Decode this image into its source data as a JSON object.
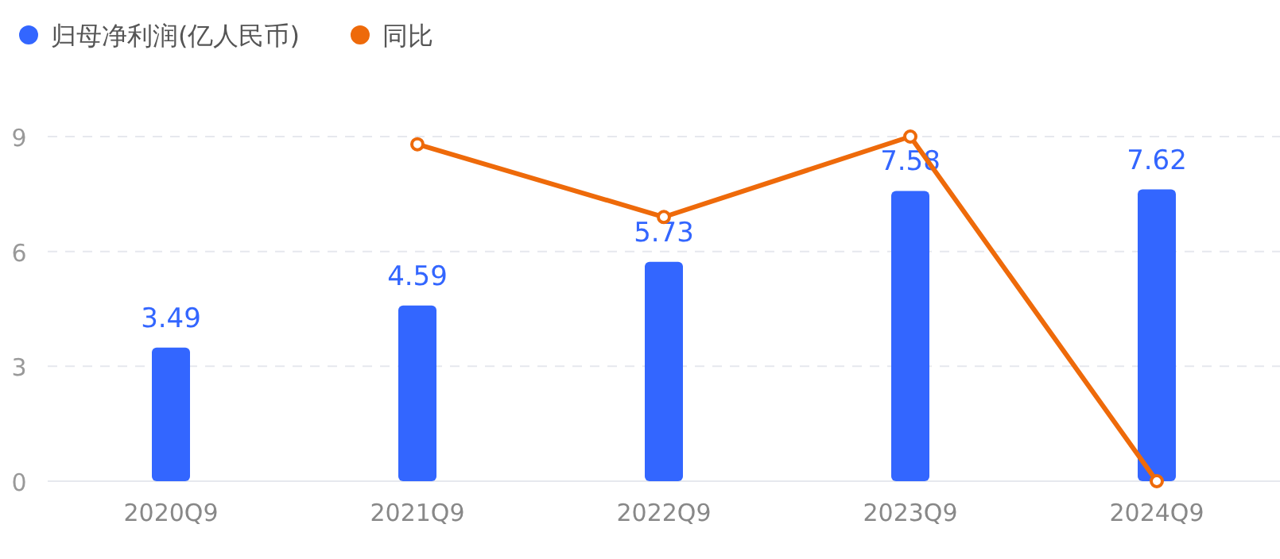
{
  "chart_data": {
    "type": "bar",
    "categories": [
      "2020Q9",
      "2021Q9",
      "2022Q9",
      "2023Q9",
      "2024Q9"
    ],
    "series": [
      {
        "name": "归母净利润(亿人民币)",
        "color": "#3366ff",
        "values": [
          3.49,
          4.59,
          5.73,
          7.58,
          7.62
        ],
        "value_labels": [
          "3.49",
          "4.59",
          "5.73",
          "7.58",
          "7.62"
        ]
      },
      {
        "name": "同比",
        "type": "line",
        "color": "#ee6a0a",
        "marker": "circle",
        "values": [
          null,
          8.8,
          6.9,
          9.0,
          0.0
        ]
      }
    ],
    "ylim": [
      0,
      9
    ],
    "yticks": [
      0,
      3,
      6,
      9
    ],
    "grid": "y",
    "legend": "top left"
  }
}
